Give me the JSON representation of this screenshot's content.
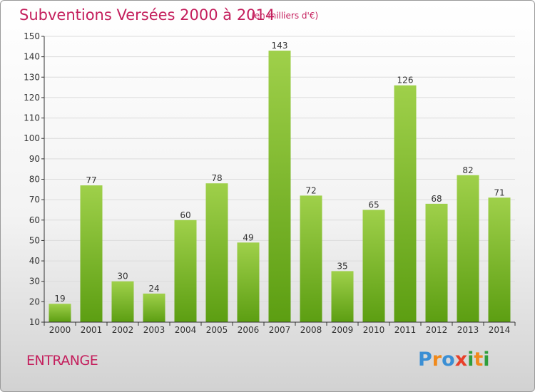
{
  "header": {
    "title": "Subventions Versées 2000 à 2014",
    "subtitle": "(en milliers d'€)"
  },
  "footer": {
    "city": "ENTRANGE",
    "logo": {
      "letters": [
        "P",
        "r",
        "o",
        "x",
        "i",
        "t",
        "i"
      ],
      "colors": [
        "#3b8fd4",
        "#f08a1c",
        "#3b8fd4",
        "#e8402a",
        "#2f9e3b",
        "#f08a1c",
        "#2f9e3b"
      ]
    }
  },
  "colors": {
    "bar_top": "#9fd04a",
    "bar_bottom": "#5c9e12",
    "grid": "#dcdcdc",
    "axis": "#333333",
    "label": "#333333"
  },
  "chart_data": {
    "type": "bar",
    "title": "Subventions Versées 2000 à 2014",
    "subtitle": "(en milliers d'€)",
    "categories": [
      "2000",
      "2001",
      "2002",
      "2003",
      "2004",
      "2005",
      "2006",
      "2007",
      "2008",
      "2009",
      "2010",
      "2011",
      "2012",
      "2013",
      "2014"
    ],
    "values": [
      19,
      77,
      30,
      24,
      60,
      78,
      49,
      143,
      72,
      35,
      65,
      126,
      68,
      82,
      71
    ],
    "ylim": [
      10,
      150
    ],
    "yticks": [
      10,
      20,
      30,
      40,
      50,
      60,
      70,
      80,
      90,
      100,
      110,
      120,
      130,
      140,
      150
    ],
    "grid": true,
    "data_labels": true
  }
}
